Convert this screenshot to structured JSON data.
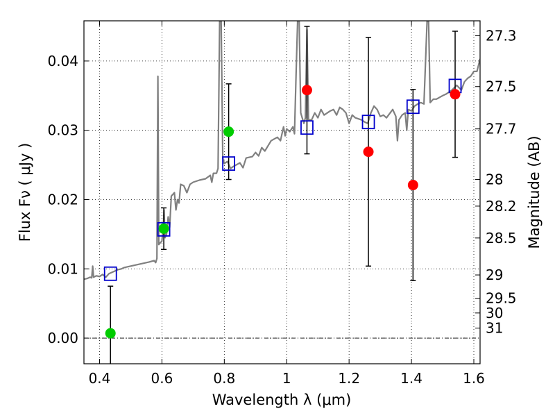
{
  "chart_data": {
    "type": "scatter",
    "xlabel": "Wavelength  λ (μm)",
    "ylabel": "Flux  Fν  ( μJy )",
    "ylabel_right": "Magnitude (AB)",
    "xlim": [
      0.35,
      1.62
    ],
    "ylim": [
      -0.0037,
      0.0458
    ],
    "x_ticks": [
      {
        "value": 0.4,
        "label": "0.4"
      },
      {
        "value": 0.6,
        "label": "0.6"
      },
      {
        "value": 0.8,
        "label": "0.8"
      },
      {
        "value": 1.0,
        "label": "1"
      },
      {
        "value": 1.2,
        "label": "1.2"
      },
      {
        "value": 1.4,
        "label": "1.4"
      },
      {
        "value": 1.6,
        "label": "1.6"
      }
    ],
    "y_ticks": [
      {
        "value": 0.0,
        "label": "0.00"
      },
      {
        "value": 0.01,
        "label": "0.01"
      },
      {
        "value": 0.02,
        "label": "0.02"
      },
      {
        "value": 0.03,
        "label": "0.03"
      },
      {
        "value": 0.04,
        "label": "0.04"
      }
    ],
    "right_ticks": [
      {
        "value": 27.3,
        "label": "27.3"
      },
      {
        "value": 27.5,
        "label": "27.5"
      },
      {
        "value": 27.7,
        "label": "27.7"
      },
      {
        "value": 28.0,
        "label": "28"
      },
      {
        "value": 28.2,
        "label": "28.2"
      },
      {
        "value": 28.5,
        "label": "28.5"
      },
      {
        "value": 29.0,
        "label": "29"
      },
      {
        "value": 29.5,
        "label": "29.5"
      },
      {
        "value": 30.0,
        "label": "30"
      },
      {
        "value": 31.0,
        "label": "31"
      }
    ],
    "grid": true,
    "reference_line": {
      "y": 0.0,
      "style": "dash-dot"
    },
    "colors": {
      "model": "#808080",
      "model_photometry": "#0000cc",
      "optical_points": "#00cc00",
      "nir_points": "#ff0000",
      "error_bars": "#000000"
    },
    "model_spectrum": [
      [
        0.35,
        0.0085
      ],
      [
        0.36,
        0.0086
      ],
      [
        0.37,
        0.0088
      ],
      [
        0.375,
        0.0087
      ],
      [
        0.378,
        0.0104
      ],
      [
        0.381,
        0.0088
      ],
      [
        0.39,
        0.009
      ],
      [
        0.4,
        0.0089
      ],
      [
        0.41,
        0.0092
      ],
      [
        0.42,
        0.0088
      ],
      [
        0.43,
        0.0093
      ],
      [
        0.44,
        0.0095
      ],
      [
        0.45,
        0.0097
      ],
      [
        0.46,
        0.0099
      ],
      [
        0.47,
        0.01
      ],
      [
        0.48,
        0.0102
      ],
      [
        0.5,
        0.0104
      ],
      [
        0.52,
        0.0106
      ],
      [
        0.54,
        0.0108
      ],
      [
        0.56,
        0.011
      ],
      [
        0.575,
        0.0112
      ],
      [
        0.58,
        0.0109
      ],
      [
        0.584,
        0.0115
      ],
      [
        0.587,
        0.0378
      ],
      [
        0.59,
        0.0135
      ],
      [
        0.595,
        0.0138
      ],
      [
        0.6,
        0.014
      ],
      [
        0.605,
        0.0165
      ],
      [
        0.607,
        0.0185
      ],
      [
        0.61,
        0.0145
      ],
      [
        0.615,
        0.015
      ],
      [
        0.62,
        0.0175
      ],
      [
        0.625,
        0.016
      ],
      [
        0.63,
        0.0205
      ],
      [
        0.64,
        0.021
      ],
      [
        0.645,
        0.0185
      ],
      [
        0.65,
        0.02
      ],
      [
        0.655,
        0.0195
      ],
      [
        0.66,
        0.0222
      ],
      [
        0.67,
        0.022
      ],
      [
        0.68,
        0.021
      ],
      [
        0.69,
        0.0222
      ],
      [
        0.7,
        0.0225
      ],
      [
        0.72,
        0.0228
      ],
      [
        0.74,
        0.023
      ],
      [
        0.755,
        0.0235
      ],
      [
        0.76,
        0.0225
      ],
      [
        0.765,
        0.0238
      ],
      [
        0.775,
        0.0238
      ],
      [
        0.78,
        0.0245
      ],
      [
        0.785,
        0.0458
      ],
      [
        0.79,
        0.0458
      ],
      [
        0.795,
        0.026
      ],
      [
        0.8,
        0.0252
      ],
      [
        0.81,
        0.0255
      ],
      [
        0.82,
        0.0245
      ],
      [
        0.83,
        0.0248
      ],
      [
        0.85,
        0.0253
      ],
      [
        0.86,
        0.0246
      ],
      [
        0.87,
        0.026
      ],
      [
        0.89,
        0.0262
      ],
      [
        0.9,
        0.0268
      ],
      [
        0.91,
        0.0263
      ],
      [
        0.92,
        0.0275
      ],
      [
        0.93,
        0.027
      ],
      [
        0.95,
        0.0285
      ],
      [
        0.97,
        0.029
      ],
      [
        0.98,
        0.0285
      ],
      [
        0.99,
        0.0305
      ],
      [
        0.995,
        0.0292
      ],
      [
        1.0,
        0.0302
      ],
      [
        1.01,
        0.0298
      ],
      [
        1.02,
        0.0305
      ],
      [
        1.025,
        0.0295
      ],
      [
        1.03,
        0.0378
      ],
      [
        1.035,
        0.0458
      ],
      [
        1.04,
        0.0458
      ],
      [
        1.045,
        0.0325
      ],
      [
        1.055,
        0.031
      ],
      [
        1.06,
        0.0318
      ],
      [
        1.065,
        0.0445
      ],
      [
        1.07,
        0.0315
      ],
      [
        1.08,
        0.0315
      ],
      [
        1.09,
        0.0325
      ],
      [
        1.1,
        0.0318
      ],
      [
        1.11,
        0.033
      ],
      [
        1.12,
        0.0322
      ],
      [
        1.13,
        0.0325
      ],
      [
        1.14,
        0.0328
      ],
      [
        1.15,
        0.033
      ],
      [
        1.16,
        0.0322
      ],
      [
        1.17,
        0.0333
      ],
      [
        1.18,
        0.033
      ],
      [
        1.19,
        0.0325
      ],
      [
        1.2,
        0.031
      ],
      [
        1.21,
        0.0322
      ],
      [
        1.22,
        0.0318
      ],
      [
        1.24,
        0.0315
      ],
      [
        1.25,
        0.0312
      ],
      [
        1.26,
        0.031
      ],
      [
        1.27,
        0.0325
      ],
      [
        1.28,
        0.0335
      ],
      [
        1.29,
        0.033
      ],
      [
        1.3,
        0.032
      ],
      [
        1.31,
        0.0322
      ],
      [
        1.32,
        0.0318
      ],
      [
        1.34,
        0.033
      ],
      [
        1.35,
        0.032
      ],
      [
        1.355,
        0.0285
      ],
      [
        1.36,
        0.0315
      ],
      [
        1.37,
        0.0322
      ],
      [
        1.38,
        0.0325
      ],
      [
        1.385,
        0.03
      ],
      [
        1.39,
        0.033
      ],
      [
        1.4,
        0.0328
      ],
      [
        1.41,
        0.0335
      ],
      [
        1.42,
        0.0338
      ],
      [
        1.43,
        0.034
      ],
      [
        1.44,
        0.0338
      ],
      [
        1.45,
        0.0458
      ],
      [
        1.455,
        0.0458
      ],
      [
        1.46,
        0.034
      ],
      [
        1.47,
        0.0345
      ],
      [
        1.48,
        0.0345
      ],
      [
        1.5,
        0.035
      ],
      [
        1.51,
        0.0352
      ],
      [
        1.52,
        0.0355
      ],
      [
        1.53,
        0.0358
      ],
      [
        1.545,
        0.0365
      ],
      [
        1.56,
        0.0358
      ],
      [
        1.57,
        0.037
      ],
      [
        1.58,
        0.0375
      ],
      [
        1.59,
        0.0378
      ],
      [
        1.6,
        0.0385
      ],
      [
        1.61,
        0.0385
      ],
      [
        1.62,
        0.0403
      ]
    ],
    "model_photometry": [
      {
        "x": 0.435,
        "y": 0.0093
      },
      {
        "x": 0.606,
        "y": 0.0157
      },
      {
        "x": 0.814,
        "y": 0.0252
      },
      {
        "x": 1.065,
        "y": 0.0304
      },
      {
        "x": 1.262,
        "y": 0.0312
      },
      {
        "x": 1.405,
        "y": 0.0334
      },
      {
        "x": 1.54,
        "y": 0.0364
      }
    ],
    "observed": [
      {
        "x": 0.435,
        "y": 0.0007,
        "err": 0.0068,
        "color": "optical_points"
      },
      {
        "x": 0.606,
        "y": 0.0158,
        "err": 0.003,
        "color": "optical_points"
      },
      {
        "x": 0.814,
        "y": 0.0298,
        "err": 0.0069,
        "color": "optical_points"
      },
      {
        "x": 1.065,
        "y": 0.0358,
        "err": 0.0092,
        "color": "nir_points"
      },
      {
        "x": 1.262,
        "y": 0.0269,
        "err": 0.0165,
        "color": "nir_points"
      },
      {
        "x": 1.405,
        "y": 0.0221,
        "err": 0.0138,
        "color": "nir_points"
      },
      {
        "x": 1.54,
        "y": 0.0352,
        "err": 0.0091,
        "color": "nir_points"
      }
    ]
  }
}
